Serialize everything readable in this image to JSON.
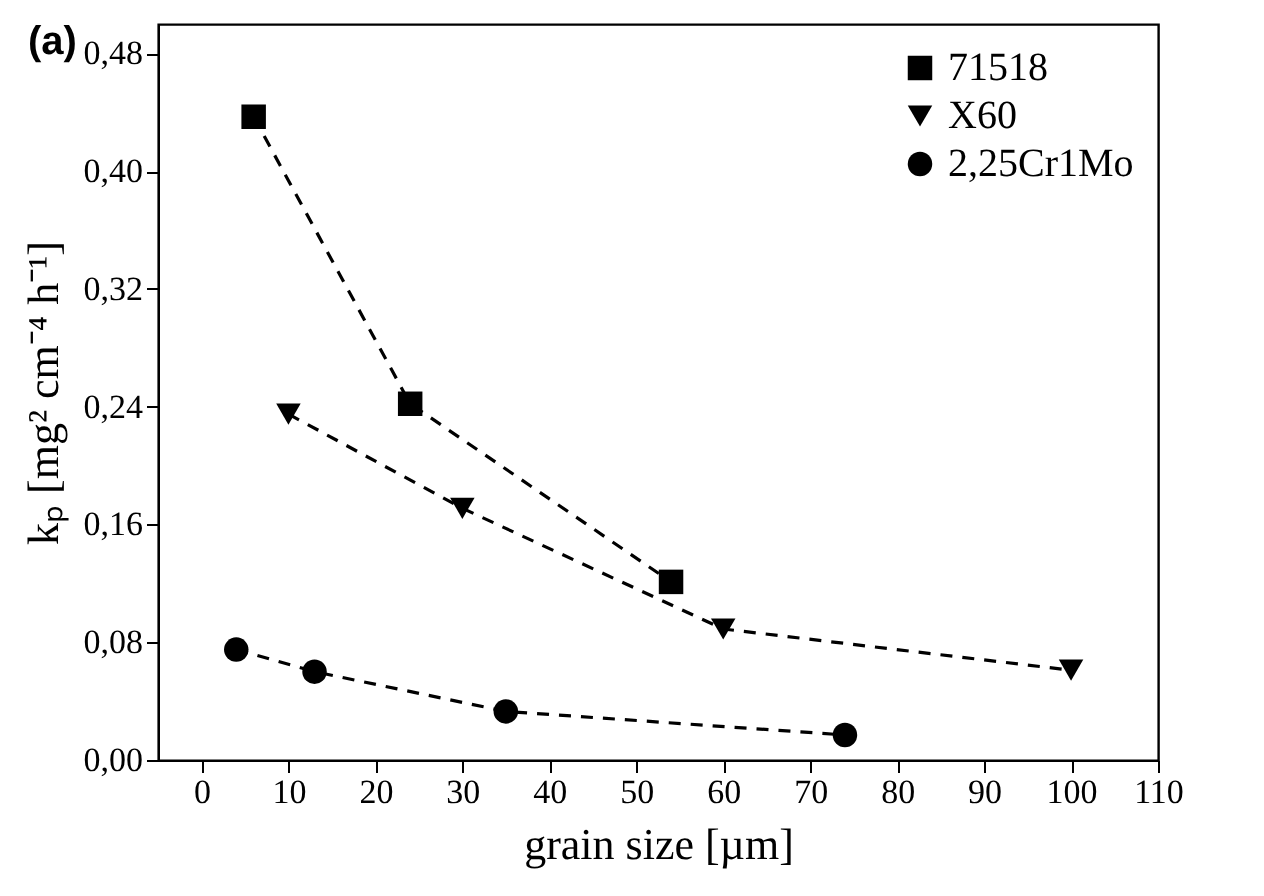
{
  "chart_data": {
    "type": "line",
    "xlabel": "grain size [µm]",
    "ylabel": "kₚ [mg² cm⁻⁴ h⁻¹]",
    "annotations": [
      "(a)"
    ],
    "xlim": [
      -5,
      110
    ],
    "xticks": [
      0,
      10,
      20,
      30,
      40,
      50,
      60,
      70,
      80,
      90,
      100,
      110
    ],
    "ylim": [
      0,
      0.5
    ],
    "yticks": [
      {
        "value": 0,
        "label": "0,00"
      },
      {
        "value": 0.08,
        "label": "0,08"
      },
      {
        "value": 0.16,
        "label": "0,16"
      },
      {
        "value": 0.24,
        "label": "0,24"
      },
      {
        "value": 0.32,
        "label": "0,32"
      },
      {
        "value": 0.4,
        "label": "0,40"
      },
      {
        "value": 0.48,
        "label": "0,48"
      }
    ],
    "grid": false,
    "legend": "top right",
    "line_style": "dashed",
    "series": [
      {
        "name": "71518",
        "color": "#000000",
        "marker": "square",
        "x": [
          6,
          24,
          54
        ],
        "values": [
          0.437,
          0.242,
          0.121
        ]
      },
      {
        "name": "X60",
        "color": "#000000",
        "marker": "triangle",
        "x": [
          10,
          30,
          60,
          100
        ],
        "values": [
          0.235,
          0.171,
          0.089,
          0.061
        ]
      },
      {
        "name": "2,25Cr1Mo",
        "color": "#000000",
        "marker": "circle",
        "x": [
          4,
          13,
          35,
          74
        ],
        "values": [
          0.075,
          0.06,
          0.033,
          0.017
        ]
      }
    ]
  }
}
